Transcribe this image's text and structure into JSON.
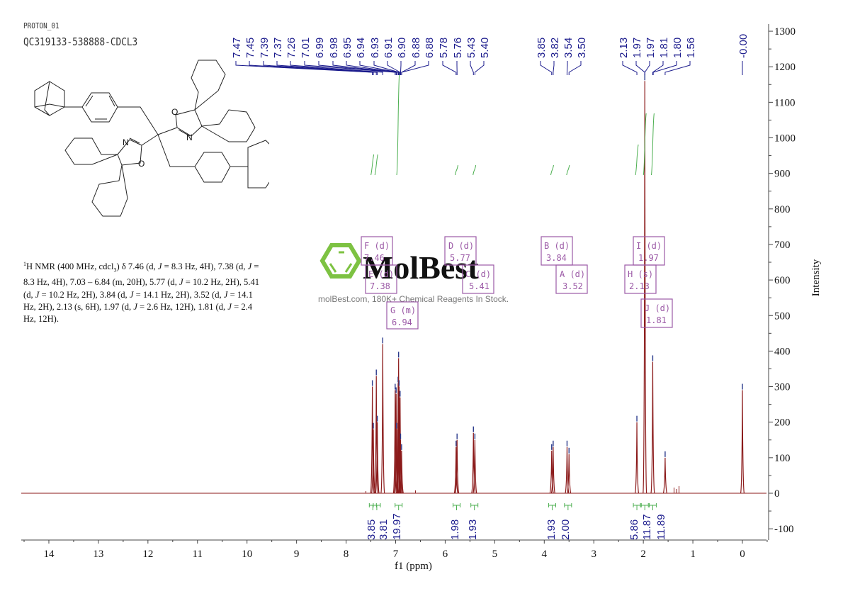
{
  "header": {
    "experiment": "PROTON_01",
    "sample": "QC319133-538888-CDCL3"
  },
  "nmr_description": {
    "prefix_sup": "1",
    "text_parts": [
      "H NMR (400 MHz, cdcl",
      "3",
      ") δ 7.46 (d, ",
      "J",
      " = 8.3 Hz, 4H), 7.38 (d, ",
      "J",
      " = 8.3 Hz, 4H), 7.03 – 6.84 (m, 20H), 5.77 (d, ",
      "J",
      " = 10.2 Hz, 2H), 5.41 (d, ",
      "J",
      " = 10.2 Hz, 2H), 3.84 (d, ",
      "J",
      " = 14.1 Hz, 2H), 3.52 (d, ",
      "J",
      " = 14.1 Hz, 2H), 2.13 (s, 6H), 1.97 (d, ",
      "J",
      " = 2.6 Hz, 12H), 1.81 (d, ",
      "J",
      " = 2.4 Hz, 12H)."
    ]
  },
  "watermark": {
    "brand": "MolBest",
    "tagline": "molBest.com, 180K+ Chemical Reagents In Stock.",
    "logo_color": "#7dc242"
  },
  "colors": {
    "spectrum": "#8b1a1a",
    "peak_labels": "#1a1a8c",
    "integrals": "#4caf50",
    "multiplet_boxes": "#9b59a6",
    "axis": "#333333",
    "atom_labels": "#c0392b"
  },
  "chart_data": {
    "type": "line",
    "title": "",
    "xlabel": "f1 (ppm)",
    "ylabel": "Intensity",
    "xlim": [
      14.5,
      -0.5
    ],
    "ylim": [
      -100,
      1300
    ],
    "x_ticks": [
      14,
      13,
      12,
      11,
      10,
      9,
      8,
      7,
      6,
      5,
      4,
      3,
      2,
      1,
      0
    ],
    "y_ticks": [
      -100,
      0,
      100,
      200,
      300,
      400,
      500,
      600,
      700,
      800,
      900,
      1000,
      1100,
      1200,
      1300
    ],
    "grid": false,
    "peak_labels": [
      "7.47",
      "7.45",
      "7.39",
      "7.37",
      "7.26",
      "7.01",
      "6.99",
      "6.98",
      "6.95",
      "6.94",
      "6.93",
      "6.91",
      "6.90",
      "6.88",
      "6.88",
      "5.78",
      "5.76",
      "5.43",
      "5.40",
      "3.85",
      "3.82",
      "3.54",
      "3.50",
      "2.13",
      "1.97",
      "1.97",
      "1.81",
      "1.80",
      "1.56",
      "-0.00"
    ],
    "peaks": [
      {
        "ppm": 7.47,
        "intensity": 300
      },
      {
        "ppm": 7.45,
        "intensity": 180
      },
      {
        "ppm": 7.39,
        "intensity": 330
      },
      {
        "ppm": 7.37,
        "intensity": 200
      },
      {
        "ppm": 7.26,
        "intensity": 420
      },
      {
        "ppm": 7.01,
        "intensity": 290
      },
      {
        "ppm": 6.99,
        "intensity": 280
      },
      {
        "ppm": 6.98,
        "intensity": 180
      },
      {
        "ppm": 6.95,
        "intensity": 310
      },
      {
        "ppm": 6.94,
        "intensity": 380
      },
      {
        "ppm": 6.93,
        "intensity": 300
      },
      {
        "ppm": 6.91,
        "intensity": 270
      },
      {
        "ppm": 6.9,
        "intensity": 150
      },
      {
        "ppm": 6.88,
        "intensity": 120
      },
      {
        "ppm": 5.78,
        "intensity": 130
      },
      {
        "ppm": 5.76,
        "intensity": 150
      },
      {
        "ppm": 5.43,
        "intensity": 170
      },
      {
        "ppm": 5.4,
        "intensity": 150
      },
      {
        "ppm": 3.85,
        "intensity": 120
      },
      {
        "ppm": 3.82,
        "intensity": 130
      },
      {
        "ppm": 3.54,
        "intensity": 130
      },
      {
        "ppm": 3.5,
        "intensity": 110
      },
      {
        "ppm": 2.13,
        "intensity": 200
      },
      {
        "ppm": 1.97,
        "intensity": 1160
      },
      {
        "ppm": 1.81,
        "intensity": 370
      },
      {
        "ppm": 1.56,
        "intensity": 100
      },
      {
        "ppm": 0.0,
        "intensity": 290
      }
    ],
    "multiplets": [
      {
        "id": "F",
        "type": "d",
        "shift": "7.46"
      },
      {
        "id": "E",
        "type": "d",
        "shift": "7.38"
      },
      {
        "id": "G",
        "type": "m",
        "shift": "6.94"
      },
      {
        "id": "D",
        "type": "d",
        "shift": "5.77"
      },
      {
        "id": "C",
        "type": "d",
        "shift": "5.41"
      },
      {
        "id": "B",
        "type": "d",
        "shift": "3.84"
      },
      {
        "id": "A",
        "type": "d",
        "shift": "3.52"
      },
      {
        "id": "H",
        "type": "s",
        "shift": "2.13"
      },
      {
        "id": "I",
        "type": "d",
        "shift": "1.97"
      },
      {
        "id": "J",
        "type": "d",
        "shift": "1.81"
      }
    ],
    "integrals": [
      {
        "ppm": 7.46,
        "value": "3.85"
      },
      {
        "ppm": 7.38,
        "value": "3.81"
      },
      {
        "ppm": 6.94,
        "value": "19.97"
      },
      {
        "ppm": 5.77,
        "value": "1.98"
      },
      {
        "ppm": 5.41,
        "value": "1.93"
      },
      {
        "ppm": 3.84,
        "value": "1.93"
      },
      {
        "ppm": 3.52,
        "value": "2.00"
      },
      {
        "ppm": 2.13,
        "value": "5.86"
      },
      {
        "ppm": 1.97,
        "value": "11.87"
      },
      {
        "ppm": 1.81,
        "value": "11.89"
      }
    ]
  }
}
